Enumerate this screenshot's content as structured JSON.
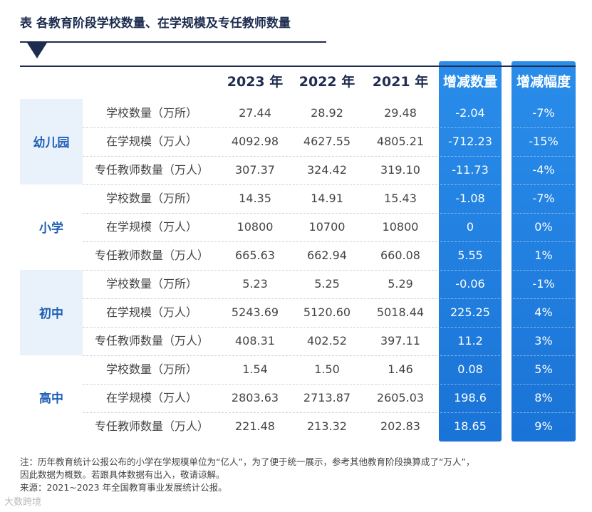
{
  "title": "表  各教育阶段学校数量、在学规模及专任教师数量",
  "header": {
    "y1": "2023 年",
    "y2": "2022 年",
    "y3": "2021 年",
    "change": "增减数量",
    "pct": "增减幅度"
  },
  "groups": [
    {
      "label": "幼儿园",
      "rows": [
        {
          "item": "学校数量（万所）",
          "y1": "27.44",
          "y2": "28.92",
          "y3": "29.48",
          "change": "-2.04",
          "pct": "-7%"
        },
        {
          "item": "在学规模（万人）",
          "y1": "4092.98",
          "y2": "4627.55",
          "y3": "4805.21",
          "change": "-712.23",
          "pct": "-15%"
        },
        {
          "item": "专任教师数量（万人）",
          "y1": "307.37",
          "y2": "324.42",
          "y3": "319.10",
          "change": "-11.73",
          "pct": "-4%"
        }
      ]
    },
    {
      "label": "小学",
      "rows": [
        {
          "item": "学校数量（万所）",
          "y1": "14.35",
          "y2": "14.91",
          "y3": "15.43",
          "change": "-1.08",
          "pct": "-7%"
        },
        {
          "item": "在学规模（万人）",
          "y1": "10800",
          "y2": "10700",
          "y3": "10800",
          "change": "0",
          "pct": "0%"
        },
        {
          "item": "专任教师数量（万人）",
          "y1": "665.63",
          "y2": "662.94",
          "y3": "660.08",
          "change": "5.55",
          "pct": "1%"
        }
      ]
    },
    {
      "label": "初中",
      "rows": [
        {
          "item": "学校数量（万所）",
          "y1": "5.23",
          "y2": "5.25",
          "y3": "5.29",
          "change": "-0.06",
          "pct": "-1%"
        },
        {
          "item": "在学规模（万人）",
          "y1": "5243.69",
          "y2": "5120.60",
          "y3": "5018.44",
          "change": "225.25",
          "pct": "4%"
        },
        {
          "item": "专任教师数量（万人）",
          "y1": "408.31",
          "y2": "402.52",
          "y3": "397.11",
          "change": "11.2",
          "pct": "3%"
        }
      ]
    },
    {
      "label": "高中",
      "rows": [
        {
          "item": "学校数量（万所）",
          "y1": "1.54",
          "y2": "1.50",
          "y3": "1.46",
          "change": "0.08",
          "pct": "5%"
        },
        {
          "item": "在学规模（万人）",
          "y1": "2803.63",
          "y2": "2713.87",
          "y3": "2605.03",
          "change": "198.6",
          "pct": "8%"
        },
        {
          "item": "专任教师数量（万人）",
          "y1": "221.48",
          "y2": "213.32",
          "y3": "202.83",
          "change": "18.65",
          "pct": "9%"
        }
      ]
    }
  ],
  "note": {
    "line1": "注：历年教育统计公报公布的小学在学规模单位为“亿人”，为了便于统一展示，参考其他教育阶段换算成了“万人”，",
    "line2": "因此数据为概数。若跟具体数据有出入，敬请谅解。",
    "line3": "来源：2021~2023 年全国教育事业发展统计公报。"
  },
  "watermark": "大数跨境",
  "colors": {
    "accent": "#1a73d6",
    "title": "#1e2d4f",
    "group_label": "#1f5fb5",
    "group_shade": "#e9f1fb"
  }
}
